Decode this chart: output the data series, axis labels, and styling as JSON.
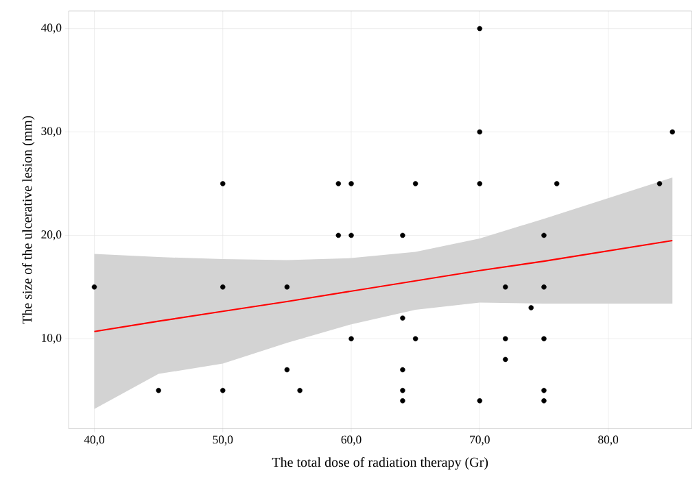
{
  "chart_data": {
    "type": "scatter",
    "xlabel": "The total dose of radiation therapy (Gr)",
    "ylabel": "The size of the ulcerative lesion (mm)",
    "xlim": [
      38,
      86.5
    ],
    "ylim": [
      1.3,
      41.7
    ],
    "xticks": [
      {
        "value": 40,
        "label": "40,0"
      },
      {
        "value": 50,
        "label": "50,0"
      },
      {
        "value": 60,
        "label": "60,0"
      },
      {
        "value": 70,
        "label": "70,0"
      },
      {
        "value": 80,
        "label": "80,0"
      }
    ],
    "yticks": [
      {
        "value": 10,
        "label": "10,0"
      },
      {
        "value": 20,
        "label": "20,0"
      },
      {
        "value": 30,
        "label": "30,0"
      },
      {
        "value": 40,
        "label": "40,0"
      }
    ],
    "grid": true,
    "series": [
      {
        "marker": "circle",
        "color": "#000000",
        "x": [
          40,
          45,
          50,
          50,
          50,
          55,
          55,
          56,
          59,
          59,
          60,
          60,
          60,
          64,
          64,
          64,
          64,
          64,
          65,
          65,
          70,
          70,
          70,
          70,
          72,
          72,
          72,
          74,
          75,
          75,
          75,
          75,
          75,
          76,
          84,
          85
        ],
        "values": [
          15,
          5,
          25,
          15,
          5,
          15,
          7,
          5,
          25,
          20,
          25,
          20,
          10,
          20,
          12,
          7,
          5,
          4,
          25,
          10,
          40,
          30,
          25,
          4,
          15,
          10,
          8,
          13,
          20,
          15,
          10,
          5,
          4,
          25,
          25,
          30
        ]
      },
      {
        "type": "line",
        "color": "#ff0000",
        "x": [
          40,
          45,
          50,
          55,
          60,
          65,
          70,
          75,
          80,
          85
        ],
        "values": [
          10.7,
          11.7,
          12.65,
          13.6,
          14.6,
          15.6,
          16.6,
          17.5,
          18.5,
          19.5
        ],
        "lower": [
          3.2,
          6.6,
          7.6,
          9.6,
          11.4,
          12.8,
          13.5,
          13.4,
          13.4,
          13.4
        ],
        "upper": [
          18.2,
          17.9,
          17.7,
          17.6,
          17.8,
          18.4,
          19.7,
          21.6,
          23.6,
          25.6
        ]
      }
    ]
  }
}
